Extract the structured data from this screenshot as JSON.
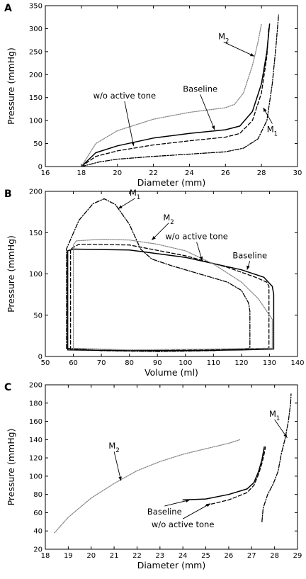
{
  "chart_data": [
    {
      "panel_label": "A",
      "type": "line",
      "xlabel": "Diameter (mm)",
      "ylabel": "Pressure (mmHg)",
      "xlim": [
        16,
        30
      ],
      "ylim": [
        0,
        350
      ],
      "xticks": [
        "16",
        "18",
        "20",
        "22",
        "24",
        "26",
        "28",
        "30"
      ],
      "yticks": [
        "0",
        "50",
        "100",
        "150",
        "200",
        "250",
        "300",
        "350"
      ],
      "grid": false,
      "series": [
        {
          "name": "Baseline",
          "style": "solid",
          "color": "#000000",
          "points": [
            [
              18.0,
              0
            ],
            [
              18.8,
              30
            ],
            [
              20,
              45
            ],
            [
              22,
              62
            ],
            [
              24,
              72
            ],
            [
              26,
              80
            ],
            [
              26.8,
              88
            ],
            [
              27.5,
              120
            ],
            [
              28,
              180
            ],
            [
              28.3,
              250
            ],
            [
              28.45,
              310
            ]
          ]
        },
        {
          "name": "w/o active tone",
          "style": "dashed",
          "color": "#000000",
          "points": [
            [
              18.0,
              0
            ],
            [
              18.8,
              22
            ],
            [
              20,
              34
            ],
            [
              22,
              47
            ],
            [
              24,
              56
            ],
            [
              26,
              64
            ],
            [
              26.8,
              72
            ],
            [
              27.5,
              100
            ],
            [
              28,
              160
            ],
            [
              28.3,
              240
            ],
            [
              28.4,
              300
            ]
          ]
        },
        {
          "name": "M1",
          "style": "dashdot",
          "color": "#000000",
          "points": [
            [
              18.0,
              0
            ],
            [
              19,
              10
            ],
            [
              20,
              16
            ],
            [
              22,
              22
            ],
            [
              24,
              27
            ],
            [
              26,
              32
            ],
            [
              27,
              40
            ],
            [
              27.8,
              60
            ],
            [
              28.3,
              100
            ],
            [
              28.6,
              180
            ],
            [
              28.8,
              260
            ],
            [
              28.95,
              330
            ]
          ]
        },
        {
          "name": "M2",
          "style": "dotted",
          "color": "#888888",
          "points": [
            [
              18.0,
              0
            ],
            [
              18.8,
              50
            ],
            [
              20,
              78
            ],
            [
              22,
              103
            ],
            [
              24,
              118
            ],
            [
              26,
              128
            ],
            [
              26.5,
              135
            ],
            [
              27,
              160
            ],
            [
              27.5,
              220
            ],
            [
              27.8,
              270
            ],
            [
              28,
              310
            ]
          ]
        }
      ],
      "annotations": [
        {
          "label": "w/o active tone",
          "text_at": [
            20.4,
            148
          ],
          "arrow_to": [
            20.9,
            45
          ]
        },
        {
          "label": "Baseline",
          "text_at": [
            24.6,
            163
          ],
          "arrow_to": [
            25.4,
            80
          ]
        },
        {
          "label": "M",
          "sub": "2",
          "text_at": [
            25.9,
            277
          ],
          "arrow_to": [
            27.6,
            240
          ]
        },
        {
          "label": "M",
          "sub": "1",
          "text_at": [
            28.6,
            75
          ],
          "arrow_to": [
            28.1,
            128
          ]
        }
      ]
    },
    {
      "panel_label": "B",
      "type": "line",
      "xlabel": "Volume (ml)",
      "ylabel": "Pressure (mmHg)",
      "xlim": [
        50,
        140
      ],
      "ylim": [
        0,
        200
      ],
      "xticks": [
        "50",
        "60",
        "70",
        "80",
        "90",
        "100",
        "110",
        "120",
        "130",
        "140"
      ],
      "yticks": [
        "0",
        "50",
        "100",
        "150",
        "200"
      ],
      "grid": false,
      "series": [
        {
          "name": "Baseline",
          "style": "solid",
          "color": "#000000",
          "points": [
            [
              58,
              8
            ],
            [
              58,
              128
            ],
            [
              60,
              130
            ],
            [
              80,
              129
            ],
            [
              100,
              120
            ],
            [
              120,
              105
            ],
            [
              128,
              96
            ],
            [
              131,
              85
            ],
            [
              131.5,
              75
            ],
            [
              131.5,
              9
            ],
            [
              120,
              8
            ],
            [
              100,
              7
            ],
            [
              80,
              7
            ],
            [
              58,
              8
            ]
          ]
        },
        {
          "name": "w/o active tone",
          "style": "dashed",
          "color": "#000000",
          "points": [
            [
              59,
              8
            ],
            [
              59,
              130
            ],
            [
              62,
              136
            ],
            [
              80,
              135
            ],
            [
              100,
              122
            ],
            [
              115,
              108
            ],
            [
              125,
              96
            ],
            [
              129,
              90
            ],
            [
              129.8,
              85
            ],
            [
              129.8,
              10
            ],
            [
              110,
              8
            ],
            [
              80,
              7
            ],
            [
              59,
              8
            ]
          ]
        },
        {
          "name": "M1",
          "style": "dashdot",
          "color": "#000000",
          "points": [
            [
              57.5,
              10
            ],
            [
              57.5,
              130
            ],
            [
              62,
              165
            ],
            [
              67,
              185
            ],
            [
              71,
              191
            ],
            [
              75,
              184
            ],
            [
              80,
              160
            ],
            [
              84,
              130
            ],
            [
              88,
              118
            ],
            [
              95,
              110
            ],
            [
              105,
              100
            ],
            [
              115,
              90
            ],
            [
              120,
              80
            ],
            [
              122.5,
              65
            ],
            [
              123,
              55
            ],
            [
              123,
              10
            ],
            [
              110,
              7
            ],
            [
              90,
              6
            ],
            [
              70,
              7
            ],
            [
              57.5,
              10
            ]
          ]
        },
        {
          "name": "M2",
          "style": "dotted",
          "color": "#888888",
          "points": [
            [
              60,
              10
            ],
            [
              60,
              135
            ],
            [
              61,
              140
            ],
            [
              70,
              142
            ],
            [
              80,
              141
            ],
            [
              90,
              136
            ],
            [
              100,
              128
            ],
            [
              110,
              112
            ],
            [
              120,
              90
            ],
            [
              126,
              70
            ],
            [
              131,
              45
            ],
            [
              131,
              10
            ],
            [
              110,
              9
            ],
            [
              80,
              8
            ],
            [
              60,
              10
            ]
          ]
        }
      ],
      "annotations": [
        {
          "label": "M",
          "sub": "1",
          "text_at": [
            82,
            195
          ],
          "arrow_to": [
            76,
            179
          ]
        },
        {
          "label": "M",
          "sub": "2",
          "text_at": [
            94,
            165
          ],
          "arrow_to": [
            88,
            141
          ]
        },
        {
          "label": "w/o active tone",
          "text_at": [
            104,
            142
          ],
          "arrow_to": [
            106,
            116
          ]
        },
        {
          "label": "Baseline",
          "text_at": [
            123,
            119
          ],
          "arrow_to": [
            122,
            105
          ]
        }
      ]
    },
    {
      "panel_label": "C",
      "type": "line",
      "xlabel": "Diameter (mm)",
      "ylabel": "Pressure (mmHg)",
      "xlim": [
        18,
        29
      ],
      "ylim": [
        20,
        200
      ],
      "xticks": [
        "18",
        "19",
        "20",
        "21",
        "22",
        "23",
        "24",
        "25",
        "26",
        "27",
        "28",
        "29"
      ],
      "yticks": [
        "20",
        "40",
        "60",
        "80",
        "100",
        "120",
        "140",
        "160",
        "180",
        "200"
      ],
      "grid": false,
      "series": [
        {
          "name": "M2",
          "style": "dotted",
          "color": "#888888",
          "points": [
            [
              18.4,
              38
            ],
            [
              19,
              55
            ],
            [
              20,
              76
            ],
            [
              21,
              92
            ],
            [
              22,
              106
            ],
            [
              23,
              116
            ],
            [
              24,
              124
            ],
            [
              25,
              130
            ],
            [
              26,
              136
            ],
            [
              26.5,
              140
            ]
          ]
        },
        {
          "name": "Baseline",
          "style": "solid",
          "color": "#000000",
          "points": [
            [
              24,
              74
            ],
            [
              25,
              75
            ],
            [
              26,
              80
            ],
            [
              26.8,
              86
            ],
            [
              27.1,
              93
            ],
            [
              27.3,
              105
            ],
            [
              27.45,
              118
            ],
            [
              27.55,
              132
            ]
          ]
        },
        {
          "name": "w/o active tone",
          "style": "dashed",
          "color": "#000000",
          "points": [
            [
              25,
              68
            ],
            [
              26,
              74
            ],
            [
              26.8,
              82
            ],
            [
              27.1,
              90
            ],
            [
              27.3,
              102
            ],
            [
              27.45,
              114
            ],
            [
              27.55,
              125
            ],
            [
              27.6,
              132
            ]
          ]
        },
        {
          "name": "M1",
          "style": "dashdot",
          "color": "#000000",
          "points": [
            [
              27.45,
              50
            ],
            [
              27.5,
              65
            ],
            [
              27.7,
              80
            ],
            [
              27.95,
              92
            ],
            [
              28.15,
              105
            ],
            [
              28.3,
              125
            ],
            [
              28.45,
              140
            ],
            [
              28.6,
              160
            ],
            [
              28.7,
              180
            ],
            [
              28.72,
              190
            ]
          ]
        }
      ],
      "annotations": [
        {
          "label": "M",
          "sub": "2",
          "text_at": [
            21.0,
            130
          ],
          "arrow_to": [
            21.3,
            95
          ]
        },
        {
          "label": "Baseline",
          "text_at": [
            23.2,
            58
          ],
          "arrow_to": [
            24.3,
            74
          ]
        },
        {
          "label": "w/o active tone",
          "text_at": [
            24.0,
            44
          ],
          "arrow_to": [
            25.2,
            70
          ]
        },
        {
          "label": "M",
          "sub": "1",
          "text_at": [
            28.0,
            165
          ],
          "arrow_to": [
            28.55,
            142
          ]
        }
      ]
    }
  ]
}
